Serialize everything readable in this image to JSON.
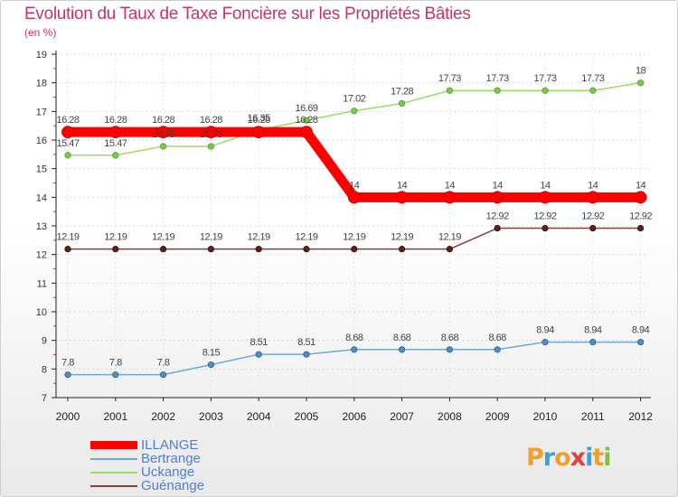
{
  "chart_data": {
    "type": "line",
    "title": "Evolution du Taux de Taxe Foncière sur les Propriétés Bâties",
    "unit_label": "(en %)",
    "x": [
      "2000",
      "2001",
      "2002",
      "2003",
      "2004",
      "2005",
      "2006",
      "2007",
      "2008",
      "2009",
      "2010",
      "2011",
      "2012"
    ],
    "ylim": [
      7,
      19
    ],
    "yticks": [
      7,
      8,
      9,
      10,
      11,
      12,
      13,
      14,
      15,
      16,
      17,
      18,
      19
    ],
    "grid": true,
    "series": [
      {
        "name": "ILLANGE",
        "color": "#ff0000",
        "values": [
          16.28,
          16.28,
          16.28,
          16.28,
          16.28,
          16.28,
          14,
          14,
          14,
          14,
          14,
          14,
          14
        ],
        "labels": [
          "16.28",
          "16.28",
          "16.28",
          "16.28",
          "16.28",
          "16.28",
          "14",
          "14",
          "14",
          "14",
          "14",
          "14",
          "14"
        ]
      },
      {
        "name": "Bertrange",
        "color": "#6fa8d2",
        "values": [
          7.8,
          7.8,
          7.8,
          8.15,
          8.51,
          8.51,
          8.68,
          8.68,
          8.68,
          8.68,
          8.94,
          8.94,
          8.94
        ],
        "labels": [
          "7.8",
          "7.8",
          "7.8",
          "8.15",
          "8.51",
          "8.51",
          "8.68",
          "8.68",
          "8.68",
          "8.68",
          "8.94",
          "8.94",
          "8.94"
        ]
      },
      {
        "name": "Uckange",
        "color": "#99dd66",
        "values": [
          15.47,
          15.47,
          15.78,
          15.78,
          16.35,
          16.69,
          17.02,
          17.28,
          17.73,
          17.73,
          17.73,
          17.73,
          18
        ],
        "labels": [
          "15.47",
          "15.47",
          "15.78",
          "15.78",
          "16.35",
          "16.69",
          "17.02",
          "17.28",
          "17.73",
          "17.73",
          "17.73",
          "17.73",
          "18"
        ]
      },
      {
        "name": "Guénange",
        "color": "#804040",
        "values": [
          12.19,
          12.19,
          12.19,
          12.19,
          12.19,
          12.19,
          12.19,
          12.19,
          12.19,
          12.92,
          12.92,
          12.92,
          12.92
        ],
        "labels": [
          "12.19",
          "12.19",
          "12.19",
          "12.19",
          "12.19",
          "12.19",
          "12.19",
          "12.19",
          "12.19",
          "12.92",
          "12.92",
          "12.92",
          "12.92"
        ]
      }
    ]
  },
  "logo": {
    "letters": [
      "P",
      "r",
      "o",
      "x",
      "i",
      "t",
      "i"
    ],
    "colors": [
      "#f0a030",
      "#3aa0e0",
      "#f0a030",
      "#e04040",
      "#3aa0e0",
      "#f0a030",
      "#80c040"
    ]
  }
}
